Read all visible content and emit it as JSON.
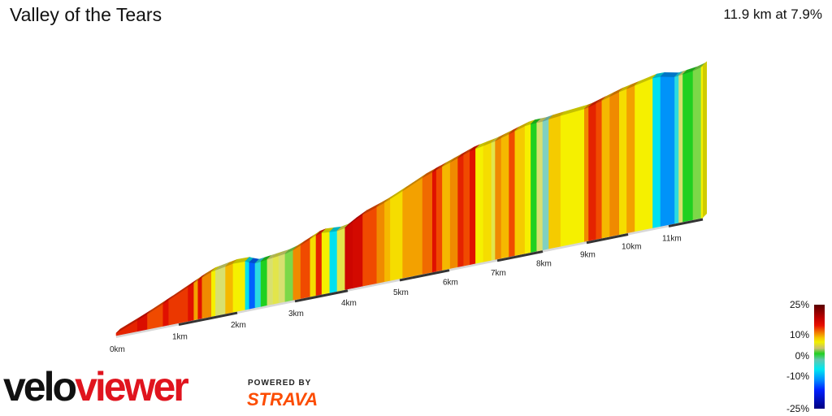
{
  "header": {
    "title": "Valley of the Tears",
    "summary": "11.9 km at 7.9%"
  },
  "logo": {
    "velo": "velo",
    "viewer": "viewer",
    "powered_by": "POWERED BY",
    "strava": "STRAVA"
  },
  "colors": {
    "viewer_red": "#e0141e",
    "strava_orange": "#fc4c02"
  },
  "chart_data": {
    "type": "area",
    "title": "Valley of the Tears",
    "distance_km": 11.9,
    "average_gradient_pct": 7.9,
    "x_ticks": [
      "0km",
      "1km",
      "2km",
      "3km",
      "4km",
      "5km",
      "6km",
      "7km",
      "8km",
      "9km",
      "10km",
      "11km"
    ],
    "profile_km_elev": [
      [
        0,
        0
      ],
      [
        0.45,
        72
      ],
      [
        1.23,
        212
      ],
      [
        1.52,
        263
      ],
      [
        2.07,
        299
      ],
      [
        2.3,
        263
      ],
      [
        2.9,
        289
      ],
      [
        3.46,
        372
      ],
      [
        3.89,
        361
      ],
      [
        4.23,
        428
      ],
      [
        4.66,
        475
      ],
      [
        5.48,
        593
      ],
      [
        6.46,
        700
      ],
      [
        6.92,
        726
      ],
      [
        7.66,
        790
      ],
      [
        8.0,
        792
      ],
      [
        8.18,
        800
      ],
      [
        9.0,
        820
      ],
      [
        9.77,
        880
      ],
      [
        10.7,
        930
      ],
      [
        11.15,
        905
      ],
      [
        11.6,
        920
      ],
      [
        11.9,
        940
      ]
    ],
    "segments_km_gradient": [
      [
        0,
        0.34,
        14
      ],
      [
        0.34,
        0.5,
        16
      ],
      [
        0.5,
        0.75,
        12
      ],
      [
        0.75,
        0.84,
        15
      ],
      [
        0.84,
        1.16,
        13
      ],
      [
        1.16,
        1.26,
        15
      ],
      [
        1.26,
        1.33,
        9
      ],
      [
        1.33,
        1.4,
        15
      ],
      [
        1.4,
        1.56,
        10
      ],
      [
        1.56,
        1.63,
        5
      ],
      [
        1.63,
        1.8,
        2
      ],
      [
        1.8,
        1.93,
        8
      ],
      [
        1.93,
        2.14,
        5
      ],
      [
        2.14,
        2.21,
        -5
      ],
      [
        2.21,
        2.31,
        -10
      ],
      [
        2.31,
        2.41,
        -4
      ],
      [
        2.41,
        2.52,
        0
      ],
      [
        2.52,
        2.62,
        2
      ],
      [
        2.62,
        2.72,
        3
      ],
      [
        2.72,
        2.83,
        2
      ],
      [
        2.83,
        2.97,
        1
      ],
      [
        2.97,
        3.11,
        10
      ],
      [
        3.11,
        3.29,
        12
      ],
      [
        3.29,
        3.4,
        6
      ],
      [
        3.4,
        3.51,
        14
      ],
      [
        3.51,
        3.66,
        5
      ],
      [
        3.66,
        3.8,
        -5
      ],
      [
        3.8,
        3.95,
        3
      ],
      [
        3.95,
        4.1,
        18
      ],
      [
        4.1,
        4.29,
        17
      ],
      [
        4.29,
        4.56,
        12
      ],
      [
        4.56,
        4.71,
        10
      ],
      [
        4.71,
        4.82,
        8
      ],
      [
        4.82,
        5.06,
        6
      ],
      [
        5.06,
        5.46,
        9
      ],
      [
        5.46,
        5.66,
        11
      ],
      [
        5.66,
        5.74,
        15
      ],
      [
        5.74,
        5.86,
        12
      ],
      [
        5.86,
        6.02,
        8
      ],
      [
        6.02,
        6.18,
        10
      ],
      [
        6.18,
        6.3,
        14
      ],
      [
        6.3,
        6.43,
        12
      ],
      [
        6.43,
        6.55,
        15
      ],
      [
        6.55,
        6.71,
        5
      ],
      [
        6.71,
        6.88,
        6
      ],
      [
        6.88,
        6.96,
        3
      ],
      [
        6.96,
        7.09,
        10
      ],
      [
        7.09,
        7.26,
        8
      ],
      [
        7.26,
        7.39,
        12
      ],
      [
        7.39,
        7.61,
        7
      ],
      [
        7.61,
        7.74,
        5
      ],
      [
        7.74,
        7.87,
        0
      ],
      [
        7.87,
        8.0,
        2
      ],
      [
        8.0,
        8.14,
        -2
      ],
      [
        8.14,
        8.41,
        7
      ],
      [
        8.41,
        8.95,
        5
      ],
      [
        8.95,
        9.05,
        10
      ],
      [
        9.05,
        9.23,
        14
      ],
      [
        9.23,
        9.37,
        12
      ],
      [
        9.37,
        9.56,
        8
      ],
      [
        9.56,
        9.79,
        10
      ],
      [
        9.79,
        9.97,
        6
      ],
      [
        9.97,
        10.17,
        9
      ],
      [
        10.17,
        10.61,
        5
      ],
      [
        10.61,
        10.8,
        -5
      ],
      [
        10.8,
        11.15,
        -8
      ],
      [
        11.15,
        11.25,
        -4
      ],
      [
        11.25,
        11.35,
        2
      ],
      [
        11.35,
        11.6,
        0
      ],
      [
        11.6,
        11.8,
        1
      ],
      [
        11.8,
        11.9,
        5
      ]
    ],
    "colorbar": {
      "labels": [
        "25%",
        "10%",
        "0%",
        "-10%",
        "-25%"
      ],
      "range": [
        -25,
        25
      ]
    }
  }
}
